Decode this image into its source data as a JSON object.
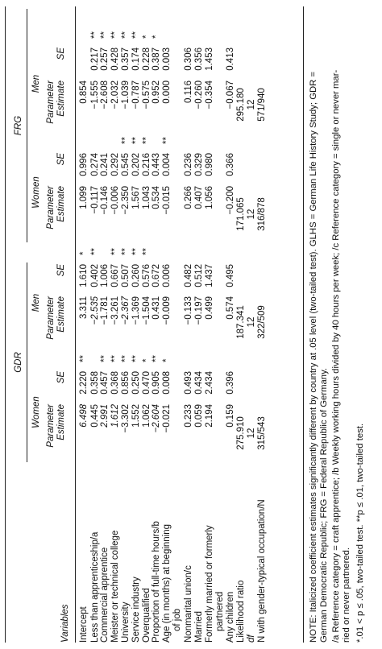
{
  "headers": {
    "variables": "Variables",
    "gdr": "GDR",
    "frg": "FRG",
    "women": "Women",
    "men": "Men",
    "param1": "Parameter",
    "param2": "Estimate",
    "se": "SE"
  },
  "rows": [
    {
      "label": [
        "Intercept"
      ],
      "cells": [
        [
          "6.498",
          true,
          "2.220",
          "**"
        ],
        [
          "3.311",
          false,
          "1.610",
          "*"
        ],
        [
          "1.099",
          false,
          "0.996",
          ""
        ],
        [
          "0.854",
          false,
          "",
          ""
        ]
      ]
    },
    {
      "label": [
        "Less than apprenticeship/a"
      ],
      "cells": [
        [
          "0.445",
          false,
          "0.358",
          ""
        ],
        [
          "−2.535",
          true,
          "0.402",
          "**"
        ],
        [
          "−0.117",
          false,
          "0.274",
          ""
        ],
        [
          "−1.555",
          false,
          "0.217",
          "**"
        ]
      ]
    },
    {
      "label": [
        "Commercial apprentice"
      ],
      "cells": [
        [
          "2.991",
          true,
          "0.457",
          "**"
        ],
        [
          "−1.781",
          false,
          "1.006",
          ""
        ],
        [
          "−0.146",
          false,
          "0.241",
          ""
        ],
        [
          "−2.608",
          false,
          "0.257",
          "**"
        ]
      ]
    },
    {
      "label": [
        "Meister or technical college"
      ],
      "cells": [
        [
          "1.612",
          true,
          "0.368",
          "**"
        ],
        [
          "−3.261",
          false,
          "0.667",
          "**"
        ],
        [
          "−0.006",
          false,
          "0.292",
          ""
        ],
        [
          "−2.032",
          false,
          "0.428",
          "**"
        ]
      ]
    },
    {
      "label": [
        "University"
      ],
      "cells": [
        [
          "−3.302",
          false,
          "0.856",
          "**"
        ],
        [
          "−2.367",
          true,
          "0.507",
          "**"
        ],
        [
          "−2.350",
          false,
          "0.545",
          "**"
        ],
        [
          "−1.039",
          false,
          "0.357",
          "**"
        ]
      ]
    },
    {
      "label": [
        "Service industry"
      ],
      "cells": [
        [
          "1.552",
          false,
          "0.250",
          "**"
        ],
        [
          "−1.369",
          false,
          "0.260",
          "**"
        ],
        [
          "1.567",
          false,
          "0.202",
          "**"
        ],
        [
          "−0.787",
          false,
          "0.174",
          "**"
        ]
      ]
    },
    {
      "label": [
        "Overqualified"
      ],
      "cells": [
        [
          "1.062",
          false,
          "0.470",
          "*"
        ],
        [
          "−1.504",
          false,
          "0.576",
          "**"
        ],
        [
          "1.043",
          false,
          "0.216",
          "**"
        ],
        [
          "−0.575",
          false,
          "0.228",
          "*"
        ]
      ]
    },
    {
      "label": [
        "Proportion of full-time hours/b"
      ],
      "cells": [
        [
          "−2.604",
          true,
          "0.905",
          "**"
        ],
        [
          "0.431",
          false,
          "0.672",
          ""
        ],
        [
          "0.534",
          false,
          "0.443",
          ""
        ],
        [
          "0.952",
          false,
          "0.387",
          "*"
        ]
      ]
    },
    {
      "label": [
        "Age (in months) at beginning",
        "of job"
      ],
      "cells": [
        [
          "−0.021",
          false,
          "0.008",
          "*"
        ],
        [
          "−0.009",
          false,
          "0.006",
          ""
        ],
        [
          "−0.015",
          false,
          "0.004",
          "**"
        ],
        [
          "0.000",
          false,
          "0.003",
          ""
        ]
      ]
    },
    {
      "label": [
        "Nonmarital union/c"
      ],
      "cells": [
        [
          "0.233",
          false,
          "0.493",
          ""
        ],
        [
          "−0.133",
          false,
          "0.482",
          ""
        ],
        [
          "0.266",
          false,
          "0.236",
          ""
        ],
        [
          "0.116",
          false,
          "0.306",
          ""
        ]
      ]
    },
    {
      "label": [
        "Married"
      ],
      "cells": [
        [
          "0.059",
          false,
          "0.434",
          ""
        ],
        [
          "−0.197",
          false,
          "0.512",
          ""
        ],
        [
          "0.407",
          false,
          "0.329",
          ""
        ],
        [
          "−0.260",
          false,
          "0.356",
          ""
        ]
      ]
    },
    {
      "label": [
        "Formerly married or formerly",
        "partnered"
      ],
      "cells": [
        [
          "2.194",
          false,
          "2.434",
          ""
        ],
        [
          "0.499",
          false,
          "1.437",
          ""
        ],
        [
          "1.056",
          false,
          "0.980",
          ""
        ],
        [
          "−0.354",
          false,
          "1.453",
          ""
        ]
      ]
    },
    {
      "label": [
        "Any children"
      ],
      "cells": [
        [
          "0.159",
          false,
          "0.396",
          ""
        ],
        [
          "0.574",
          false,
          "0.495",
          ""
        ],
        [
          "−0.200",
          false,
          "0.366",
          ""
        ],
        [
          "−0.067",
          false,
          "0.413",
          ""
        ]
      ]
    }
  ],
  "summary": {
    "lr_label": "Likelihood ratio",
    "df_label": "df",
    "n_label": "N with gender-typical occupation/N",
    "lr": [
      "275.910",
      "187.341",
      "171.065",
      "295.180"
    ],
    "df": [
      "12",
      "12",
      "12",
      "12"
    ],
    "n": [
      "315/543",
      "322/509",
      "316/878",
      "571/940"
    ]
  },
  "notes": [
    "NOTE:  Italicized coefficient estimates significantly different by country at .05 level (two-tailed test). GLHS = German Life History Study; GDR =",
    "German Democratic Republic; FRG = Federal Republic of Germany.",
    "/a Reference category = craft apprentice; /b Weekly working hours divided by 40 hours per week; /c Reference category = single or never mar-",
    "ried or never partnered.",
    "*.01 < p ≤ .05, two-tailed test. **p ≤ .01, two-tailed test."
  ]
}
